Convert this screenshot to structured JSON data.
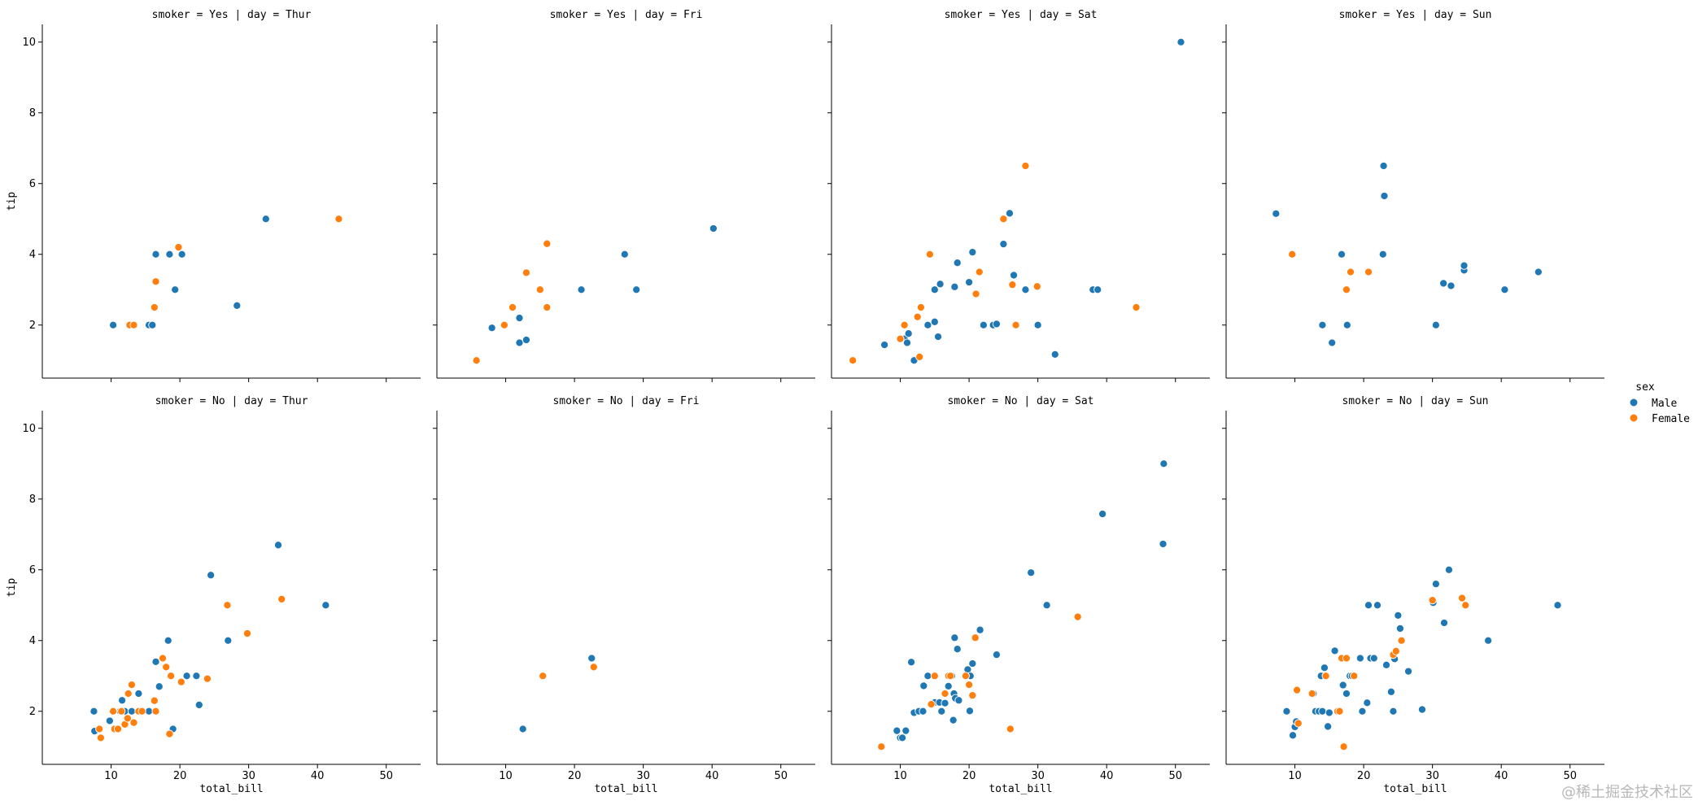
{
  "watermark": "@稀土掘金技术社区",
  "legend": {
    "title": "sex",
    "items": [
      {
        "label": "Male",
        "color": "#1f77b4"
      },
      {
        "label": "Female",
        "color": "#ff7f0e"
      }
    ]
  },
  "chart_data": {
    "type": "scatter",
    "grid": false,
    "hue": "sex",
    "xlabel": "total_bill",
    "ylabel": "tip",
    "xlim": [
      0,
      55
    ],
    "ylim": [
      0.5,
      10.5
    ],
    "xticks": [
      10,
      20,
      30,
      40,
      50
    ],
    "yticks": [
      2,
      4,
      6,
      8,
      10
    ],
    "series_colors": {
      "Male": "#1f77b4",
      "Female": "#ff7f0e"
    },
    "facets": [
      {
        "title": "smoker = Yes | day = Thur",
        "points": {
          "Male": [
            [
              10.3,
              2.0
            ],
            [
              13.0,
              2.0
            ],
            [
              15.5,
              2.0
            ],
            [
              16.0,
              2.0
            ],
            [
              16.5,
              4.0
            ],
            [
              18.5,
              4.0
            ],
            [
              19.3,
              3.0
            ],
            [
              20.3,
              4.0
            ],
            [
              28.3,
              2.55
            ],
            [
              32.5,
              5.0
            ]
          ],
          "Female": [
            [
              12.7,
              2.0
            ],
            [
              13.3,
              2.0
            ],
            [
              16.3,
              2.5
            ],
            [
              16.5,
              3.23
            ],
            [
              19.8,
              4.2
            ],
            [
              43.1,
              5.0
            ]
          ]
        }
      },
      {
        "title": "smoker = Yes | day = Fri",
        "points": {
          "Male": [
            [
              8.0,
              1.92
            ],
            [
              12.0,
              1.5
            ],
            [
              12.0,
              2.2
            ],
            [
              13.0,
              1.58
            ],
            [
              21.0,
              3.0
            ],
            [
              27.3,
              4.0
            ],
            [
              29.0,
              3.0
            ],
            [
              40.2,
              4.73
            ]
          ],
          "Female": [
            [
              5.75,
              1.0
            ],
            [
              9.8,
              2.0
            ],
            [
              11.0,
              2.5
            ],
            [
              13.0,
              3.48
            ],
            [
              15.0,
              3.0
            ],
            [
              16.0,
              4.3
            ],
            [
              16.0,
              2.5
            ]
          ]
        }
      },
      {
        "title": "smoker = Yes | day = Sat",
        "points": {
          "Male": [
            [
              7.7,
              1.44
            ],
            [
              10.5,
              2.0
            ],
            [
              10.6,
              1.61
            ],
            [
              11.0,
              1.5
            ],
            [
              11.2,
              1.76
            ],
            [
              12.0,
              1.0
            ],
            [
              14.0,
              2.0
            ],
            [
              15.0,
              3.0
            ],
            [
              15.0,
              2.09
            ],
            [
              15.5,
              1.67
            ],
            [
              15.8,
              3.16
            ],
            [
              17.9,
              3.08
            ],
            [
              18.3,
              3.76
            ],
            [
              20.0,
              3.21
            ],
            [
              20.5,
              4.06
            ],
            [
              22.1,
              2.0
            ],
            [
              23.5,
              2.0
            ],
            [
              24.0,
              2.03
            ],
            [
              25.0,
              4.29
            ],
            [
              25.9,
              5.16
            ],
            [
              26.5,
              3.41
            ],
            [
              28.2,
              3.0
            ],
            [
              30.0,
              2.0
            ],
            [
              32.5,
              1.17
            ],
            [
              38.0,
              3.0
            ],
            [
              38.7,
              3.0
            ],
            [
              50.8,
              10.0
            ]
          ],
          "Female": [
            [
              3.1,
              1.0
            ],
            [
              10.0,
              1.61
            ],
            [
              10.6,
              2.0
            ],
            [
              12.5,
              2.23
            ],
            [
              12.8,
              1.1
            ],
            [
              13.0,
              2.5
            ],
            [
              14.3,
              4.0
            ],
            [
              21.0,
              2.88
            ],
            [
              21.5,
              3.5
            ],
            [
              25.0,
              5.0
            ],
            [
              26.3,
              3.14
            ],
            [
              26.8,
              2.0
            ],
            [
              28.2,
              6.5
            ],
            [
              29.9,
              3.09
            ],
            [
              44.3,
              2.5
            ]
          ]
        }
      },
      {
        "title": "smoker = Yes | day = Sun",
        "points": {
          "Male": [
            [
              7.25,
              5.15
            ],
            [
              14.0,
              2.0
            ],
            [
              15.4,
              1.5
            ],
            [
              16.8,
              4.0
            ],
            [
              17.6,
              2.0
            ],
            [
              22.8,
              4.0
            ],
            [
              22.9,
              6.5
            ],
            [
              23.0,
              5.65
            ],
            [
              30.5,
              2.0
            ],
            [
              31.6,
              3.18
            ],
            [
              32.7,
              3.11
            ],
            [
              34.6,
              3.55
            ],
            [
              34.6,
              3.68
            ],
            [
              40.5,
              3.0
            ],
            [
              45.4,
              3.5
            ]
          ],
          "Female": [
            [
              9.6,
              4.0
            ],
            [
              17.5,
              3.0
            ],
            [
              18.1,
              3.5
            ],
            [
              20.7,
              3.5
            ]
          ]
        }
      },
      {
        "title": "smoker = No | day = Thur",
        "points": {
          "Male": [
            [
              7.5,
              2.0
            ],
            [
              7.6,
              1.44
            ],
            [
              9.8,
              1.73
            ],
            [
              11.3,
              2.0
            ],
            [
              11.6,
              2.31
            ],
            [
              12.0,
              2.0
            ],
            [
              13.0,
              2.0
            ],
            [
              14.0,
              2.5
            ],
            [
              15.5,
              2.0
            ],
            [
              16.5,
              3.4
            ],
            [
              17.0,
              2.7
            ],
            [
              18.3,
              4.0
            ],
            [
              19.0,
              1.5
            ],
            [
              21.0,
              3.0
            ],
            [
              22.4,
              3.0
            ],
            [
              22.8,
              2.18
            ],
            [
              24.5,
              5.85
            ],
            [
              27.0,
              4.0
            ],
            [
              34.3,
              6.7
            ],
            [
              41.2,
              5.0
            ]
          ],
          "Female": [
            [
              8.3,
              1.5
            ],
            [
              8.5,
              1.25
            ],
            [
              10.3,
              2.0
            ],
            [
              10.5,
              1.5
            ],
            [
              11.0,
              1.5
            ],
            [
              11.5,
              2.0
            ],
            [
              12.0,
              1.63
            ],
            [
              12.4,
              1.8
            ],
            [
              12.5,
              2.5
            ],
            [
              13.0,
              2.75
            ],
            [
              13.3,
              1.68
            ],
            [
              14.0,
              2.0
            ],
            [
              14.5,
              2.0
            ],
            [
              16.3,
              2.3
            ],
            [
              16.5,
              2.0
            ],
            [
              17.5,
              3.5
            ],
            [
              18.0,
              3.25
            ],
            [
              18.5,
              1.36
            ],
            [
              18.7,
              3.0
            ],
            [
              20.2,
              2.83
            ],
            [
              24.0,
              2.92
            ],
            [
              26.9,
              5.0
            ],
            [
              29.8,
              4.2
            ],
            [
              34.8,
              5.17
            ]
          ]
        }
      },
      {
        "title": "smoker = No | day = Fri",
        "points": {
          "Male": [
            [
              12.5,
              1.5
            ],
            [
              22.5,
              3.5
            ]
          ],
          "Female": [
            [
              15.4,
              3.0
            ],
            [
              22.8,
              3.25
            ]
          ]
        }
      },
      {
        "title": "smoker = No | day = Sat",
        "points": {
          "Male": [
            [
              9.5,
              1.45
            ],
            [
              10.0,
              1.25
            ],
            [
              10.3,
              1.25
            ],
            [
              10.8,
              1.45
            ],
            [
              11.6,
              3.39
            ],
            [
              12.0,
              1.96
            ],
            [
              12.7,
              2.0
            ],
            [
              13.3,
              2.0
            ],
            [
              13.4,
              2.72
            ],
            [
              14.0,
              3.0
            ],
            [
              15.0,
              2.25
            ],
            [
              15.7,
              2.25
            ],
            [
              16.0,
              2.0
            ],
            [
              16.5,
              2.23
            ],
            [
              17.0,
              2.71
            ],
            [
              17.5,
              3.0
            ],
            [
              17.7,
              1.75
            ],
            [
              17.8,
              2.5
            ],
            [
              17.9,
              4.08
            ],
            [
              18.0,
              2.37
            ],
            [
              18.3,
              3.76
            ],
            [
              18.5,
              2.31
            ],
            [
              19.5,
              3.0
            ],
            [
              19.8,
              3.18
            ],
            [
              20.1,
              2.01
            ],
            [
              20.2,
              3.0
            ],
            [
              20.5,
              3.35
            ],
            [
              21.0,
              4.08
            ],
            [
              21.6,
              4.3
            ],
            [
              24.0,
              3.6
            ],
            [
              29.0,
              5.92
            ],
            [
              31.3,
              5.0
            ],
            [
              39.4,
              7.58
            ],
            [
              48.2,
              6.73
            ],
            [
              48.3,
              9.0
            ]
          ],
          "Female": [
            [
              7.25,
              1.0
            ],
            [
              14.5,
              2.2
            ],
            [
              15.0,
              3.0
            ],
            [
              16.5,
              2.5
            ],
            [
              17.0,
              3.0
            ],
            [
              17.3,
              3.0
            ],
            [
              20.0,
              2.75
            ],
            [
              20.5,
              2.45
            ],
            [
              20.9,
              4.08
            ],
            [
              19.5,
              3.0
            ],
            [
              26.0,
              1.5
            ],
            [
              35.8,
              4.67
            ]
          ]
        }
      },
      {
        "title": "smoker = No | day = Sun",
        "points": {
          "Male": [
            [
              8.8,
              2.0
            ],
            [
              9.7,
              1.32
            ],
            [
              10.0,
              1.56
            ],
            [
              10.2,
              1.71
            ],
            [
              12.7,
              2.5
            ],
            [
              13.0,
              2.0
            ],
            [
              13.5,
              2.0
            ],
            [
              13.8,
              3.0
            ],
            [
              14.0,
              2.0
            ],
            [
              14.3,
              3.23
            ],
            [
              14.8,
              1.57
            ],
            [
              15.0,
              1.96
            ],
            [
              15.8,
              3.71
            ],
            [
              16.4,
              2.0
            ],
            [
              17.0,
              2.74
            ],
            [
              17.5,
              2.5
            ],
            [
              18.0,
              3.0
            ],
            [
              18.3,
              3.0
            ],
            [
              19.5,
              3.5
            ],
            [
              19.8,
              2.0
            ],
            [
              20.5,
              2.24
            ],
            [
              20.7,
              5.0
            ],
            [
              21.0,
              3.5
            ],
            [
              21.5,
              3.5
            ],
            [
              22.0,
              5.0
            ],
            [
              23.3,
              3.31
            ],
            [
              24.0,
              2.55
            ],
            [
              24.3,
              2.0
            ],
            [
              24.5,
              3.48
            ],
            [
              25.0,
              4.71
            ],
            [
              25.3,
              4.34
            ],
            [
              26.5,
              3.13
            ],
            [
              28.5,
              2.05
            ],
            [
              30.1,
              5.07
            ],
            [
              30.5,
              5.6
            ],
            [
              31.7,
              4.5
            ],
            [
              32.4,
              6.0
            ],
            [
              38.1,
              4.0
            ],
            [
              48.2,
              5.0
            ]
          ],
          "Female": [
            [
              10.3,
              2.6
            ],
            [
              10.5,
              1.66
            ],
            [
              12.5,
              2.5
            ],
            [
              14.5,
              3.0
            ],
            [
              16.2,
              2.0
            ],
            [
              16.5,
              2.0
            ],
            [
              16.8,
              3.5
            ],
            [
              17.1,
              1.0
            ],
            [
              17.5,
              3.5
            ],
            [
              18.6,
              3.0
            ],
            [
              24.3,
              3.6
            ],
            [
              24.7,
              3.7
            ],
            [
              25.5,
              4.0
            ],
            [
              30.0,
              5.14
            ],
            [
              34.3,
              5.2
            ],
            [
              34.8,
              5.0
            ]
          ]
        }
      }
    ]
  }
}
